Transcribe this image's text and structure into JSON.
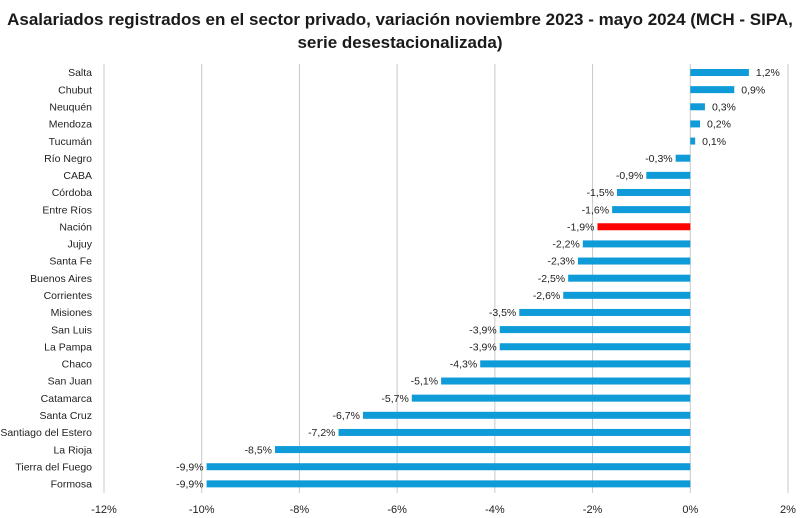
{
  "chart_data": {
    "type": "bar",
    "orientation": "horizontal",
    "title": "Asalariados registrados en el sector privado, variación noviembre 2023 - mayo 2024 (MCH - SIPA, serie desestacionalizada)",
    "xlabel": "",
    "ylabel": "",
    "xlim": [
      -12,
      2
    ],
    "x_ticks": [
      "-12%",
      "-10%",
      "-8%",
      "-6%",
      "-4%",
      "-2%",
      "0%",
      "2%"
    ],
    "grid": true,
    "legend": "none",
    "categories": [
      "Salta",
      "Chubut",
      "Neuquén",
      "Mendoza",
      "Tucumán",
      "Río Negro",
      "CABA",
      "Córdoba",
      "Entre Ríos",
      "Nación",
      "Jujuy",
      "Santa Fe",
      "Buenos Aires",
      "Corrientes",
      "Misiones",
      "San Luis",
      "La Pampa",
      "Chaco",
      "San Juan",
      "Catamarca",
      "Santa Cruz",
      "Santiago del Estero",
      "La Rioja",
      "Tierra del Fuego",
      "Formosa"
    ],
    "values": [
      1.2,
      0.9,
      0.3,
      0.2,
      0.1,
      -0.3,
      -0.9,
      -1.5,
      -1.6,
      -1.9,
      -2.2,
      -2.3,
      -2.5,
      -2.6,
      -3.5,
      -3.9,
      -3.9,
      -4.3,
      -5.1,
      -5.7,
      -6.7,
      -7.2,
      -8.5,
      -9.9,
      -9.9
    ],
    "value_labels": [
      "1,2%",
      "0,9%",
      "0,3%",
      "0,2%",
      "0,1%",
      "-0,3%",
      "-0,9%",
      "-1,5%",
      "-1,6%",
      "-1,9%",
      "-2,2%",
      "-2,3%",
      "-2,5%",
      "-2,6%",
      "-3,5%",
      "-3,9%",
      "-3,9%",
      "-4,3%",
      "-5,1%",
      "-5,7%",
      "-6,7%",
      "-7,2%",
      "-8,5%",
      "-9,9%",
      "-9,9%"
    ],
    "highlight_category": "Nación",
    "colors": {
      "bar": "#0f9bd8",
      "highlight": "#ff0000",
      "grid": "#c8c8c8"
    }
  }
}
